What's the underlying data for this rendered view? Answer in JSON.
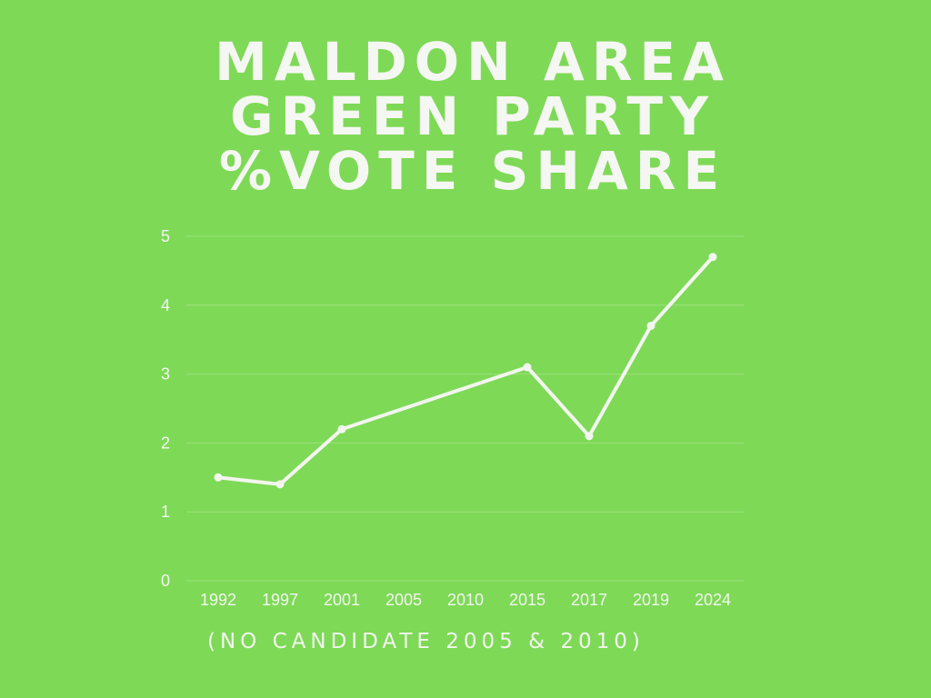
{
  "chart_data": {
    "type": "line",
    "title_lines": [
      "MALDON AREA",
      "GREEN PARTY",
      "%VOTE SHARE"
    ],
    "categories": [
      "1992",
      "1997",
      "2001",
      "2005",
      "2010",
      "2015",
      "2017",
      "2019",
      "2024"
    ],
    "series": [
      {
        "values": [
          1.5,
          1.4,
          2.2,
          null,
          null,
          3.1,
          2.1,
          3.7,
          4.7
        ]
      }
    ],
    "yticks": [
      0,
      1,
      2,
      3,
      4,
      5
    ],
    "ylim": [
      0,
      5
    ],
    "grid": true,
    "annotation": "(NO CANDIDATE 2005 & 2010)",
    "colors": {
      "background": "#7ed957",
      "line": "#f3f6ef",
      "grid": "#9be27a"
    }
  }
}
